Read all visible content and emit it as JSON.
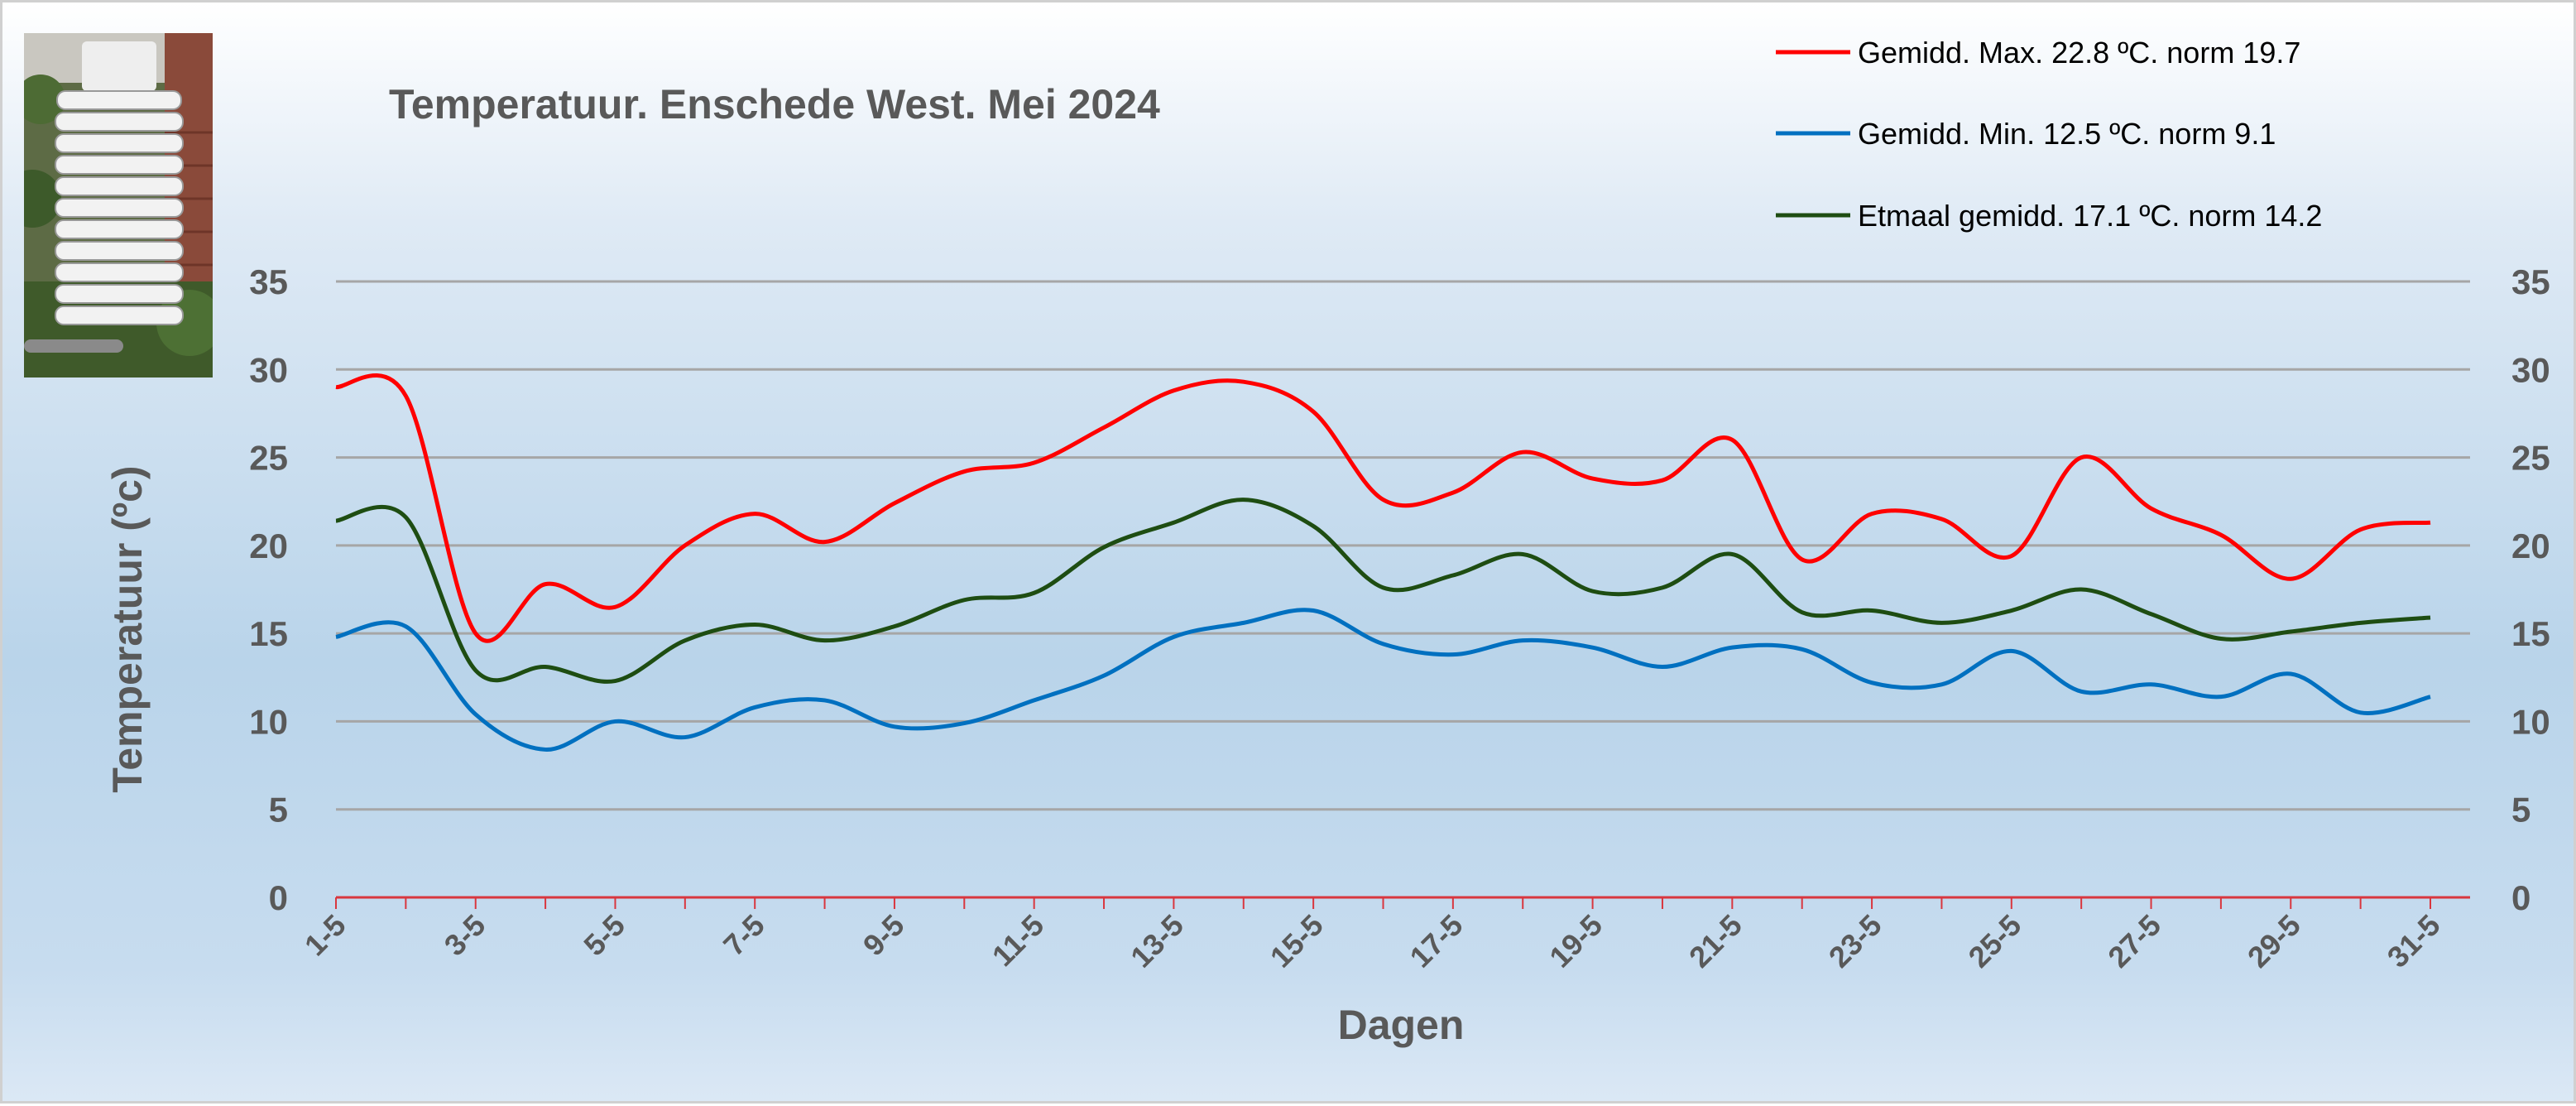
{
  "chart_data": {
    "type": "line",
    "title": "Temperatuur. Enschede West. Mei 2024",
    "xlabel": "Dagen",
    "ylabel": "Temperatuur (ºc)",
    "ylim": [
      0,
      35
    ],
    "yticks": [
      0,
      5,
      10,
      15,
      20,
      25,
      30,
      35
    ],
    "xtick_labels": [
      "1-5",
      "3-5",
      "5-5",
      "7-5",
      "9-5",
      "11-5",
      "13-5",
      "15-5",
      "17-5",
      "19-5",
      "21-5",
      "23-5",
      "25-5",
      "27-5",
      "29-5",
      "31-5"
    ],
    "x": [
      1,
      2,
      3,
      4,
      5,
      6,
      7,
      8,
      9,
      10,
      11,
      12,
      13,
      14,
      15,
      16,
      17,
      18,
      19,
      20,
      21,
      22,
      23,
      24,
      25,
      26,
      27,
      28,
      29,
      30,
      31
    ],
    "grid": true,
    "legend_position": "top-right",
    "series": [
      {
        "name": "Gemidd. Max. 22.8  ºC. norm 19.7",
        "color": "#ff0000",
        "values": [
          29.0,
          28.5,
          15.0,
          17.8,
          16.5,
          20.0,
          21.8,
          20.2,
          22.4,
          24.2,
          24.7,
          26.7,
          28.8,
          29.3,
          27.6,
          22.6,
          23.0,
          25.3,
          23.8,
          23.7,
          26.0,
          19.2,
          21.8,
          21.5,
          19.4,
          25.0,
          22.1,
          20.6,
          18.1,
          20.9,
          21.3
        ]
      },
      {
        "name": "Gemidd. Min. 12.5  ºC. norm 9.1",
        "color": "#0070c0",
        "values": [
          14.8,
          15.4,
          10.4,
          8.4,
          10.0,
          9.1,
          10.8,
          11.2,
          9.7,
          9.9,
          11.2,
          12.6,
          14.8,
          15.6,
          16.3,
          14.4,
          13.8,
          14.6,
          14.2,
          13.1,
          14.2,
          14.1,
          12.2,
          12.1,
          14.0,
          11.7,
          12.1,
          11.4,
          12.7,
          10.5,
          11.4
        ]
      },
      {
        "name": "Etmaal gemidd. 17.1  ºC. norm 14.2",
        "color": "#1e4d12",
        "values": [
          21.4,
          21.6,
          12.9,
          13.1,
          12.3,
          14.6,
          15.5,
          14.6,
          15.4,
          16.9,
          17.3,
          19.9,
          21.3,
          22.6,
          21.1,
          17.6,
          18.3,
          19.5,
          17.4,
          17.6,
          19.5,
          16.2,
          16.3,
          15.6,
          16.3,
          17.5,
          16.1,
          14.7,
          15.1,
          15.6,
          15.9
        ]
      }
    ]
  }
}
